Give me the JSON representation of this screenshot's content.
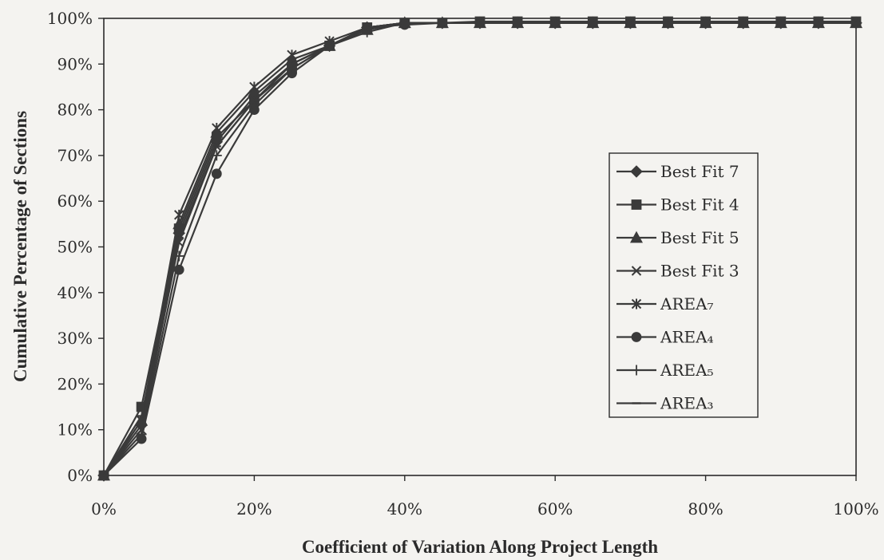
{
  "chart_data": {
    "type": "line",
    "xlabel": "Coefficient of Variation Along Project Length",
    "ylabel": "Cumulative Percentage of Sections",
    "xlim": [
      0,
      100
    ],
    "ylim": [
      0,
      100
    ],
    "x_ticks": [
      "0%",
      "20%",
      "40%",
      "60%",
      "80%",
      "100%"
    ],
    "y_ticks": [
      "0%",
      "10%",
      "20%",
      "30%",
      "40%",
      "50%",
      "60%",
      "70%",
      "80%",
      "90%",
      "100%"
    ],
    "grid": false,
    "legend_position": "right",
    "x": [
      0,
      5,
      10,
      15,
      20,
      25,
      30,
      35,
      40,
      45,
      50,
      55,
      60,
      65,
      70,
      75,
      80,
      85,
      90,
      95,
      100
    ],
    "series": [
      {
        "name": "Best Fit 7",
        "marker": "diamond",
        "values": [
          0,
          11,
          53,
          73,
          83,
          90,
          94,
          98,
          99,
          99,
          99,
          99,
          99,
          99,
          99,
          99,
          99,
          99,
          99,
          99,
          99
        ]
      },
      {
        "name": "Best Fit 4",
        "marker": "square",
        "values": [
          0,
          15,
          54,
          74,
          82,
          89,
          94,
          98,
          99,
          99,
          99.3,
          99.3,
          99.3,
          99.3,
          99.3,
          99.3,
          99.3,
          99.3,
          99.3,
          99.3,
          99.3
        ]
      },
      {
        "name": "Best Fit 5",
        "marker": "triangle",
        "values": [
          0,
          12,
          55,
          75,
          84,
          91,
          94,
          97.5,
          99,
          99,
          99,
          99,
          99,
          99,
          99,
          99,
          99,
          99,
          99,
          99,
          99
        ]
      },
      {
        "name": "Best Fit 3",
        "marker": "x",
        "values": [
          0,
          10,
          51,
          72,
          82,
          90,
          94,
          98,
          99,
          99,
          99,
          99,
          99,
          99,
          99,
          99,
          99,
          99,
          99,
          99,
          99
        ]
      },
      {
        "name": "AREA₇",
        "marker": "asterisk",
        "values": [
          0,
          12,
          57,
          76,
          85,
          92,
          95,
          98,
          99,
          99,
          99,
          99,
          99,
          99,
          99,
          99,
          99,
          99,
          99,
          99,
          99
        ]
      },
      {
        "name": "AREA₄",
        "marker": "circle",
        "values": [
          0,
          8,
          45,
          66,
          80,
          88,
          94,
          98,
          98.6,
          99,
          99,
          99,
          99,
          99,
          99,
          99,
          99,
          99,
          99,
          99,
          99
        ]
      },
      {
        "name": "AREA₅",
        "marker": "plus",
        "values": [
          0,
          9,
          48,
          70,
          81,
          89,
          94,
          97,
          99,
          99,
          99,
          99,
          99,
          99,
          99,
          99,
          99,
          99,
          99,
          99,
          99
        ]
      },
      {
        "name": "AREA₃",
        "marker": "dash",
        "values": [
          0,
          13,
          52,
          72,
          82,
          90,
          94,
          98,
          99,
          99,
          99,
          99,
          99,
          99,
          99,
          99,
          99,
          99,
          99,
          99,
          99
        ]
      }
    ]
  }
}
